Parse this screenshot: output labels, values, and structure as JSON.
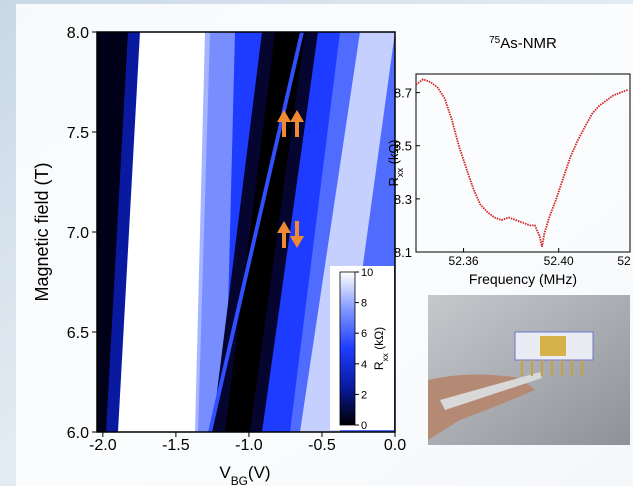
{
  "chart_data": [
    {
      "type": "heatmap",
      "xlabel": [
        "V",
        "BG",
        "(V)"
      ],
      "ylabel": "Magnetic field (T)",
      "xlim": [
        -2.04,
        0.0
      ],
      "xticks": [
        {
          "value": -2.0,
          "label": "-2.0"
        },
        {
          "value": -1.5,
          "label": "-1.5"
        },
        {
          "value": -1.0,
          "label": "-1.0"
        },
        {
          "value": -0.5,
          "label": "-0.5"
        },
        {
          "value": 0.0,
          "label": "0.0"
        }
      ],
      "ylim": [
        6.0,
        8.0
      ],
      "yticks": [
        {
          "value": 6.0,
          "label": "6.0"
        },
        6.5,
        {
          "value": 7.0,
          "label": "7.0"
        },
        7.5,
        {
          "value": 8.0,
          "label": "8.0"
        }
      ],
      "colorbar": {
        "label": [
          "R",
          "xx",
          " (kΩ)"
        ],
        "clim": [
          0,
          10
        ],
        "ticks": [
          0,
          2,
          4,
          6,
          8,
          10
        ],
        "colormap": [
          "#000000",
          "#0a1aa0",
          "#1e3cff",
          "#7f95ff",
          "#ffffff"
        ]
      }
    },
    {
      "type": "line",
      "title": [
        "75",
        "As-NMR"
      ],
      "xlabel": "Frequency (MHz)",
      "ylabel": [
        "R",
        "xx",
        " (kΩ)"
      ],
      "xlim": [
        52.34,
        52.43
      ],
      "xticks": [
        52.36,
        {
          "value": 52.4,
          "label": "52.40"
        },
        {
          "value": 52.44,
          "label": "52"
        }
      ],
      "ylim": [
        8.1,
        8.77
      ],
      "yticks": [
        8.1,
        8.3,
        8.5,
        8.7
      ],
      "color": "#d42020",
      "x": [
        52.34,
        52.343,
        52.346,
        52.349,
        52.352,
        52.355,
        52.358,
        52.361,
        52.364,
        52.367,
        52.37,
        52.373,
        52.376,
        52.379,
        52.382,
        52.385,
        52.388,
        52.39,
        52.392,
        52.393,
        52.394,
        52.396,
        52.399,
        52.402,
        52.405,
        52.408,
        52.411,
        52.414,
        52.417,
        52.42,
        52.423,
        52.426,
        52.429
      ],
      "values": [
        8.73,
        8.75,
        8.74,
        8.72,
        8.68,
        8.6,
        8.5,
        8.42,
        8.34,
        8.28,
        8.25,
        8.23,
        8.22,
        8.23,
        8.22,
        8.21,
        8.2,
        8.2,
        8.16,
        8.12,
        8.17,
        8.23,
        8.3,
        8.38,
        8.46,
        8.52,
        8.57,
        8.62,
        8.65,
        8.67,
        8.69,
        8.7,
        8.71
      ]
    }
  ]
}
